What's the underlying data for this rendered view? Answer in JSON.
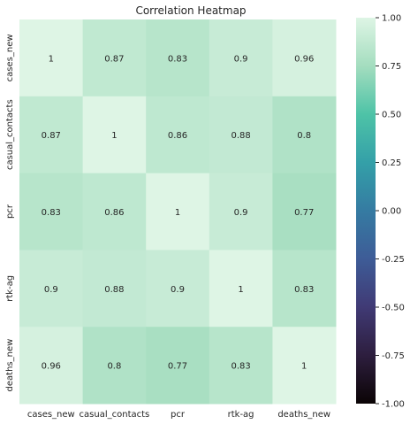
{
  "chart_data": {
    "type": "heatmap",
    "title": "Correlation Heatmap",
    "x_labels": [
      "cases_new",
      "casual_contacts",
      "pcr",
      "rtk-ag",
      "deaths_new"
    ],
    "y_labels": [
      "cases_new",
      "casual_contacts",
      "pcr",
      "rtk-ag",
      "deaths_new"
    ],
    "values": [
      [
        1,
        0.87,
        0.83,
        0.9,
        0.96
      ],
      [
        0.87,
        1,
        0.86,
        0.88,
        0.8
      ],
      [
        0.83,
        0.86,
        1,
        0.9,
        0.77
      ],
      [
        0.9,
        0.88,
        0.9,
        1,
        0.83
      ],
      [
        0.96,
        0.8,
        0.77,
        0.83,
        1
      ]
    ],
    "cell_labels": [
      [
        "1",
        "0.87",
        "0.83",
        "0.9",
        "0.96"
      ],
      [
        "0.87",
        "1",
        "0.86",
        "0.88",
        "0.8"
      ],
      [
        "0.83",
        "0.86",
        "1",
        "0.9",
        "0.77"
      ],
      [
        "0.9",
        "0.88",
        "0.9",
        "1",
        "0.83"
      ],
      [
        "0.96",
        "0.8",
        "0.77",
        "0.83",
        "1"
      ]
    ],
    "colorbar": {
      "range": [
        -1.0,
        1.0
      ],
      "ticks": [
        "-1.00",
        "-0.75",
        "-0.50",
        "-0.25",
        "0.00",
        "0.25",
        "0.50",
        "0.75",
        "1.00"
      ],
      "colormap": "mako-like (black → purple → blue → teal → mint)",
      "stops": [
        "#0b0405",
        "#2d1e3e",
        "#403a75",
        "#3e5c97",
        "#357ba2",
        "#34a0a8",
        "#4ec3a7",
        "#a4ddbf",
        "#def5e5"
      ]
    },
    "grid": false
  }
}
